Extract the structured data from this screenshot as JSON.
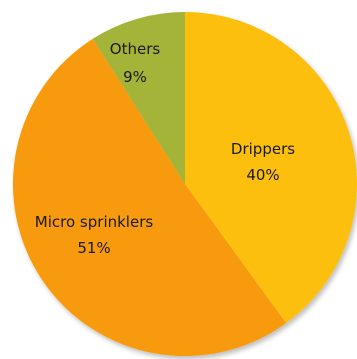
{
  "chart_data": {
    "type": "pie",
    "slices": [
      {
        "label": "Drippers",
        "value": 40,
        "value_label": "40%",
        "color": "#FCBF10"
      },
      {
        "label": "Micro sprinklers",
        "value": 51,
        "value_label": "51%",
        "color": "#F79A10"
      },
      {
        "label": "Others",
        "value": 9,
        "value_label": "9%",
        "color": "#A3B437"
      }
    ],
    "start": "top, clockwise"
  }
}
